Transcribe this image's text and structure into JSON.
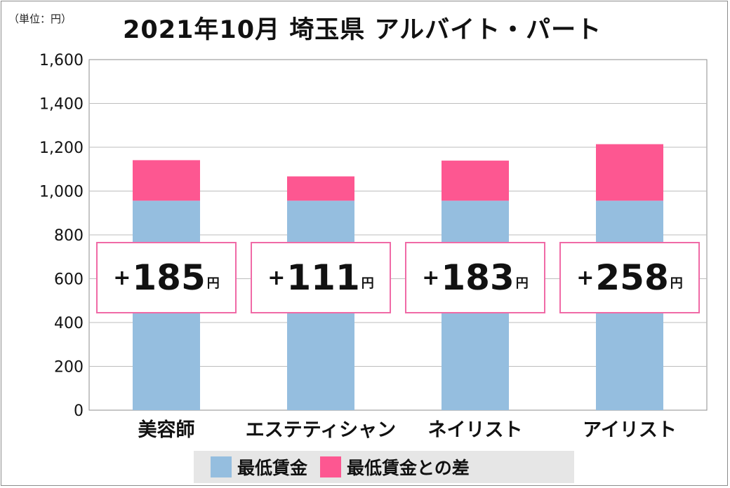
{
  "unit_label": "（単位：円）",
  "chart_data": {
    "type": "bar",
    "stacked": true,
    "title": "2021年10月 埼玉県 アルバイト・パート",
    "categories": [
      "美容師",
      "エステティシャン",
      "ネイリスト",
      "アイリスト"
    ],
    "series": [
      {
        "name": "最低賃金",
        "color": "#95bedf",
        "values": [
          956,
          956,
          956,
          956
        ]
      },
      {
        "name": "最低賃金との差",
        "color": "#fd5791",
        "values": [
          185,
          111,
          183,
          258
        ]
      }
    ],
    "yticks": [
      "0",
      "200",
      "400",
      "600",
      "800",
      "1,000",
      "1,200",
      "1,400",
      "1,600"
    ],
    "ylim": [
      0,
      1600
    ],
    "grid": true,
    "legend_position": "bottom",
    "annotations": [
      {
        "sign": "+",
        "value": "185",
        "unit": "円"
      },
      {
        "sign": "+",
        "value": "111",
        "unit": "円"
      },
      {
        "sign": "+",
        "value": "183",
        "unit": "円"
      },
      {
        "sign": "+",
        "value": "258",
        "unit": "円"
      }
    ]
  }
}
